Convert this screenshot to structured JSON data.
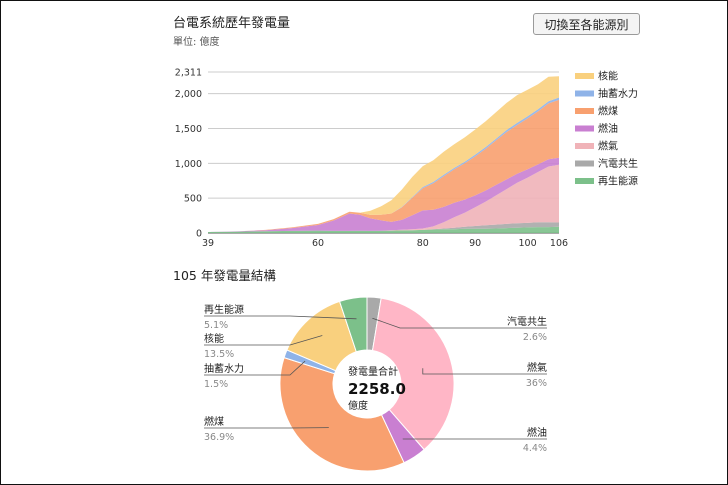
{
  "header": {
    "title": "台電系統歷年發電量",
    "unit": "單位: 億度",
    "toggle_label": "切換至各能源別"
  },
  "pie_section": {
    "heading": "105 年發電量結構",
    "center_label": "發電量合計",
    "center_total": "2258.0",
    "center_unit": "億度"
  },
  "colors": {
    "核能": "#f9d07e",
    "抽蓄水力": "#8fb3e8",
    "燃煤": "#f8a06f",
    "燃油": "#c97fd1",
    "燃氣": "#f0b3b8",
    "汽電共生": "#a9a9a9",
    "再生能源": "#7cc08a",
    "pie_燃氣": "#ffb6c6"
  },
  "chart_data": [
    {
      "type": "area",
      "stacked": true,
      "xlabel": "",
      "ylabel": "",
      "xlim": [
        39,
        106
      ],
      "ylim": [
        0,
        2311
      ],
      "x_ticks": [
        "39",
        "60",
        "80",
        "90",
        "100",
        "106"
      ],
      "y_ticks": [
        "0",
        "500",
        "1,000",
        "1,500",
        "2,000",
        "2,311"
      ],
      "grid": true,
      "legend_position": "right",
      "legend": [
        "核能",
        "抽蓄水力",
        "燃煤",
        "燃油",
        "燃氣",
        "汽電共生",
        "再生能源"
      ],
      "x": [
        39,
        45,
        50,
        55,
        60,
        63,
        66,
        68,
        70,
        72,
        74,
        76,
        78,
        80,
        82,
        84,
        86,
        88,
        90,
        92,
        94,
        96,
        98,
        100,
        102,
        104,
        106
      ],
      "series": [
        {
          "name": "再生能源",
          "values": [
            15,
            20,
            25,
            30,
            35,
            30,
            30,
            32,
            30,
            32,
            35,
            38,
            40,
            45,
            50,
            55,
            55,
            60,
            60,
            60,
            65,
            70,
            75,
            80,
            85,
            85,
            90
          ]
        },
        {
          "name": "汽電共生",
          "values": [
            0,
            0,
            0,
            0,
            0,
            0,
            0,
            0,
            0,
            0,
            0,
            0,
            0,
            0,
            5,
            10,
            20,
            30,
            40,
            50,
            55,
            60,
            65,
            65,
            70,
            70,
            60
          ]
        },
        {
          "name": "燃氣",
          "values": [
            0,
            0,
            0,
            0,
            0,
            0,
            0,
            0,
            0,
            0,
            5,
            10,
            15,
            20,
            40,
            90,
            150,
            200,
            270,
            340,
            420,
            500,
            580,
            650,
            720,
            800,
            830
          ]
        },
        {
          "name": "燃油",
          "values": [
            0,
            5,
            15,
            40,
            80,
            150,
            250,
            230,
            180,
            150,
            120,
            140,
            200,
            260,
            240,
            220,
            210,
            190,
            170,
            160,
            150,
            140,
            130,
            120,
            110,
            105,
            100
          ]
        },
        {
          "name": "燃煤",
          "values": [
            0,
            0,
            5,
            10,
            15,
            20,
            25,
            30,
            50,
            80,
            120,
            180,
            250,
            320,
            380,
            440,
            480,
            520,
            560,
            600,
            640,
            680,
            700,
            730,
            760,
            800,
            830
          ]
        },
        {
          "name": "抽蓄水力",
          "values": [
            0,
            0,
            0,
            0,
            0,
            0,
            0,
            0,
            0,
            0,
            0,
            5,
            10,
            15,
            18,
            20,
            20,
            22,
            25,
            25,
            25,
            28,
            30,
            30,
            30,
            32,
            35
          ]
        },
        {
          "name": "核能",
          "values": [
            0,
            0,
            0,
            0,
            0,
            0,
            0,
            0,
            60,
            120,
            190,
            250,
            290,
            300,
            310,
            330,
            340,
            350,
            360,
            370,
            380,
            390,
            400,
            380,
            360,
            350,
            305
          ]
        }
      ]
    },
    {
      "type": "pie",
      "slices": [
        {
          "name": "汽電共生",
          "value": 2.6
        },
        {
          "name": "燃氣",
          "value": 36
        },
        {
          "name": "燃油",
          "value": 4.4
        },
        {
          "name": "燃煤",
          "value": 36.9
        },
        {
          "name": "抽蓄水力",
          "value": 1.5
        },
        {
          "name": "核能",
          "value": 13.5
        },
        {
          "name": "再生能源",
          "value": 5.1
        }
      ],
      "labels": [
        {
          "name": "汽電共生",
          "pct": "2.6%"
        },
        {
          "name": "燃氣",
          "pct": "36%"
        },
        {
          "name": "燃油",
          "pct": "4.4%"
        },
        {
          "name": "燃煤",
          "pct": "36.9%"
        },
        {
          "name": "抽蓄水力",
          "pct": "1.5%"
        },
        {
          "name": "核能",
          "pct": "13.5%"
        },
        {
          "name": "再生能源",
          "pct": "5.1%"
        }
      ]
    }
  ]
}
